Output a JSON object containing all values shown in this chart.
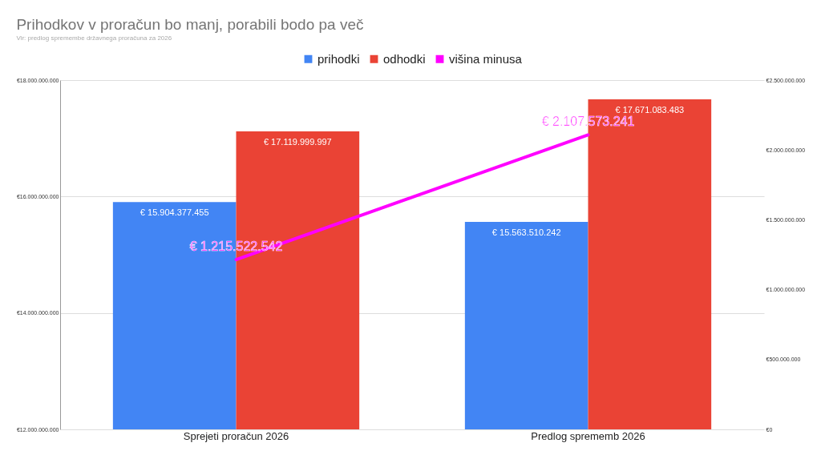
{
  "chart_data": {
    "type": "bar",
    "title": "Prihodkov v proračun bo manj, porabili bodo pa več",
    "subtitle": "Vir: predlog spremembe državnega proračuna za 2026",
    "categories": [
      "Sprejeti proračun 2026",
      "Predlog sprememb 2026"
    ],
    "series": [
      {
        "name": "prihodki",
        "color": "#4285f4",
        "values": [
          15904377455,
          15563510242
        ],
        "value_labels": [
          "€ 15.904.377.455",
          "€ 15.563.510.242"
        ]
      },
      {
        "name": "odhodki",
        "color": "#ea4335",
        "values": [
          17119999997,
          17671083483
        ],
        "value_labels": [
          "€ 17.119.999.997",
          "€ 17.671.083.483"
        ]
      },
      {
        "name": "višina minusa",
        "type": "line",
        "axis": "y2",
        "color": "#ff00ff",
        "values": [
          1215522542,
          2107573241
        ],
        "value_labels": [
          "€ 1.215.522.542",
          "€ 2.107.573.241"
        ]
      }
    ],
    "ylim": [
      12000000000,
      18000000000
    ],
    "yticks": [
      {
        "value": 12000000000,
        "label": "€12.000.000.000"
      },
      {
        "value": 14000000000,
        "label": "€14.000.000.000"
      },
      {
        "value": 16000000000,
        "label": "€16.000.000.000"
      },
      {
        "value": 18000000000,
        "label": "€18.000.000.000"
      }
    ],
    "y2lim": [
      0,
      2500000000
    ],
    "y2ticks": [
      {
        "value": 0,
        "label": "€0"
      },
      {
        "value": 500000000,
        "label": "€500.000.000"
      },
      {
        "value": 1000000000,
        "label": "€1.000.000.000"
      },
      {
        "value": 1500000000,
        "label": "€1.500.000.000"
      },
      {
        "value": 2000000000,
        "label": "€2.000.000.000"
      },
      {
        "value": 2500000000,
        "label": "€2.500.000.000"
      }
    ],
    "grid": "y",
    "legend": "top",
    "marker": "none",
    "line_style": "solid"
  }
}
